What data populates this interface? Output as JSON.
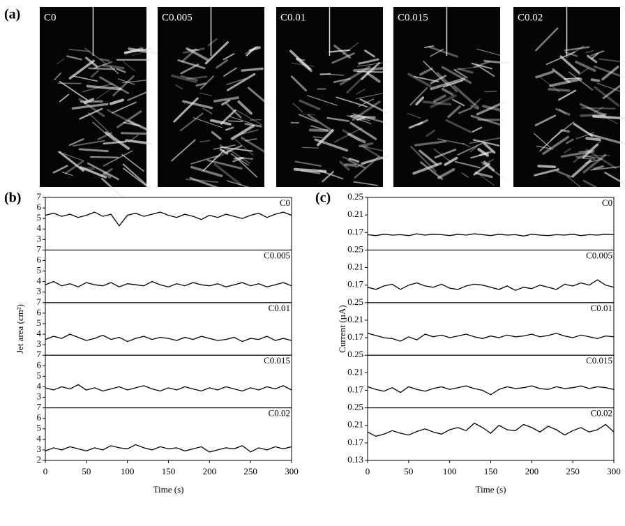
{
  "photos": {
    "panel": "(a)",
    "labels": [
      "C0",
      "C0.005",
      "C0.01",
      "C0.015",
      "C0.02"
    ]
  },
  "chart_data": [
    {
      "type": "line",
      "panel": "(b)",
      "ylabel": "Jet area (cm²)",
      "xlabel": "Time (s)",
      "xlim": [
        0,
        300
      ],
      "xticks": [
        0,
        50,
        100,
        150,
        200,
        250,
        300
      ],
      "x": [
        0,
        10,
        20,
        30,
        40,
        50,
        60,
        70,
        80,
        90,
        100,
        110,
        120,
        130,
        140,
        150,
        160,
        170,
        180,
        190,
        200,
        210,
        220,
        230,
        240,
        250,
        260,
        270,
        280,
        290,
        300
      ],
      "color": "#000000",
      "subplots": [
        {
          "label": "C0",
          "ylim": [
            2,
            7
          ],
          "yticks": [
            3,
            4,
            5,
            6,
            7
          ],
          "values": [
            5.3,
            5.5,
            5.2,
            5.4,
            5.1,
            5.3,
            5.6,
            5.2,
            5.4,
            4.3,
            5.3,
            5.5,
            5.2,
            5.4,
            5.6,
            5.3,
            5.1,
            5.4,
            5.2,
            4.9,
            5.3,
            5.1,
            5.4,
            5.2,
            5.0,
            5.3,
            5.5,
            5.1,
            5.4,
            5.6,
            5.3
          ]
        },
        {
          "label": "C0.005",
          "ylim": [
            2,
            7
          ],
          "yticks": [
            3,
            4,
            5,
            6,
            7
          ],
          "values": [
            3.7,
            4.0,
            3.6,
            3.8,
            3.5,
            3.9,
            3.7,
            3.6,
            3.9,
            3.5,
            3.8,
            3.7,
            3.6,
            4.0,
            3.7,
            3.5,
            3.8,
            3.6,
            3.9,
            3.7,
            3.6,
            3.8,
            3.5,
            3.7,
            3.9,
            3.6,
            3.8,
            3.5,
            3.7,
            3.9,
            3.6
          ]
        },
        {
          "label": "C0.01",
          "ylim": [
            2,
            7
          ],
          "yticks": [
            3,
            4,
            5,
            6,
            7
          ],
          "values": [
            3.5,
            3.8,
            3.6,
            4.0,
            3.7,
            3.4,
            3.6,
            3.9,
            3.5,
            3.7,
            3.3,
            3.6,
            3.8,
            3.5,
            3.7,
            3.6,
            3.4,
            3.7,
            3.5,
            3.8,
            3.6,
            3.4,
            3.5,
            3.7,
            3.3,
            3.6,
            3.5,
            3.8,
            3.4,
            3.6,
            3.4
          ]
        },
        {
          "label": "C0.015",
          "ylim": [
            2,
            7
          ],
          "yticks": [
            3,
            4,
            5,
            6,
            7
          ],
          "values": [
            3.9,
            3.7,
            4.0,
            3.8,
            4.2,
            3.7,
            3.9,
            3.6,
            3.8,
            4.0,
            3.7,
            3.9,
            4.1,
            3.8,
            3.6,
            3.9,
            3.7,
            4.0,
            3.8,
            3.6,
            3.9,
            3.7,
            4.0,
            3.8,
            3.6,
            3.9,
            3.7,
            4.0,
            3.8,
            4.1,
            3.7
          ]
        },
        {
          "label": "C0.02",
          "ylim": [
            2,
            7
          ],
          "yticks": [
            2,
            3,
            4,
            5,
            6,
            7
          ],
          "values": [
            2.9,
            3.2,
            3.0,
            3.3,
            3.1,
            2.9,
            3.2,
            3.0,
            3.4,
            3.2,
            3.1,
            3.5,
            3.2,
            3.0,
            3.3,
            3.1,
            3.2,
            2.9,
            3.1,
            3.3,
            2.8,
            3.0,
            3.2,
            3.1,
            3.4,
            2.8,
            3.2,
            3.0,
            3.3,
            3.1,
            3.3
          ]
        }
      ]
    },
    {
      "type": "line",
      "panel": "(c)",
      "ylabel": "Current (µA)",
      "xlabel": "Time (s)",
      "xlim": [
        0,
        300
      ],
      "xticks": [
        0,
        50,
        100,
        150,
        200,
        250,
        300
      ],
      "x": [
        0,
        10,
        20,
        30,
        40,
        50,
        60,
        70,
        80,
        90,
        100,
        110,
        120,
        130,
        140,
        150,
        160,
        170,
        180,
        190,
        200,
        210,
        220,
        230,
        240,
        250,
        260,
        270,
        280,
        290,
        300
      ],
      "color": "#000000",
      "subplots": [
        {
          "label": "C0",
          "ylim": [
            0.13,
            0.25
          ],
          "yticks": [
            0.17,
            0.21,
            0.25
          ],
          "values": [
            0.165,
            0.163,
            0.166,
            0.164,
            0.165,
            0.163,
            0.167,
            0.164,
            0.166,
            0.165,
            0.163,
            0.166,
            0.164,
            0.167,
            0.165,
            0.163,
            0.166,
            0.164,
            0.165,
            0.162,
            0.166,
            0.164,
            0.163,
            0.165,
            0.164,
            0.166,
            0.163,
            0.165,
            0.164,
            0.166,
            0.165
          ]
        },
        {
          "label": "C0.005",
          "ylim": [
            0.13,
            0.25
          ],
          "yticks": [
            0.17,
            0.21,
            0.25
          ],
          "values": [
            0.165,
            0.16,
            0.168,
            0.172,
            0.16,
            0.17,
            0.175,
            0.168,
            0.165,
            0.172,
            0.163,
            0.16,
            0.168,
            0.172,
            0.17,
            0.165,
            0.16,
            0.168,
            0.158,
            0.165,
            0.162,
            0.17,
            0.165,
            0.16,
            0.172,
            0.168,
            0.175,
            0.17,
            0.182,
            0.17,
            0.165
          ]
        },
        {
          "label": "C0.01",
          "ylim": [
            0.13,
            0.25
          ],
          "yticks": [
            0.17,
            0.21,
            0.25
          ],
          "values": [
            0.18,
            0.175,
            0.17,
            0.168,
            0.162,
            0.172,
            0.165,
            0.178,
            0.172,
            0.176,
            0.17,
            0.174,
            0.178,
            0.172,
            0.168,
            0.174,
            0.17,
            0.176,
            0.172,
            0.174,
            0.178,
            0.172,
            0.175,
            0.18,
            0.174,
            0.17,
            0.176,
            0.172,
            0.168,
            0.174,
            0.172
          ]
        },
        {
          "label": "C0.015",
          "ylim": [
            0.13,
            0.25
          ],
          "yticks": [
            0.17,
            0.21,
            0.25
          ],
          "values": [
            0.178,
            0.172,
            0.168,
            0.176,
            0.165,
            0.178,
            0.172,
            0.168,
            0.174,
            0.178,
            0.172,
            0.176,
            0.18,
            0.174,
            0.17,
            0.16,
            0.172,
            0.178,
            0.174,
            0.176,
            0.18,
            0.174,
            0.172,
            0.178,
            0.174,
            0.176,
            0.18,
            0.174,
            0.178,
            0.176,
            0.172
          ]
        },
        {
          "label": "C0.02",
          "ylim": [
            0.13,
            0.25
          ],
          "yticks": [
            0.13,
            0.17,
            0.21,
            0.25
          ],
          "values": [
            0.195,
            0.185,
            0.19,
            0.198,
            0.192,
            0.188,
            0.196,
            0.202,
            0.195,
            0.19,
            0.2,
            0.205,
            0.198,
            0.215,
            0.205,
            0.192,
            0.21,
            0.2,
            0.198,
            0.212,
            0.205,
            0.195,
            0.208,
            0.2,
            0.188,
            0.198,
            0.205,
            0.195,
            0.2,
            0.212,
            0.195
          ]
        }
      ]
    }
  ]
}
